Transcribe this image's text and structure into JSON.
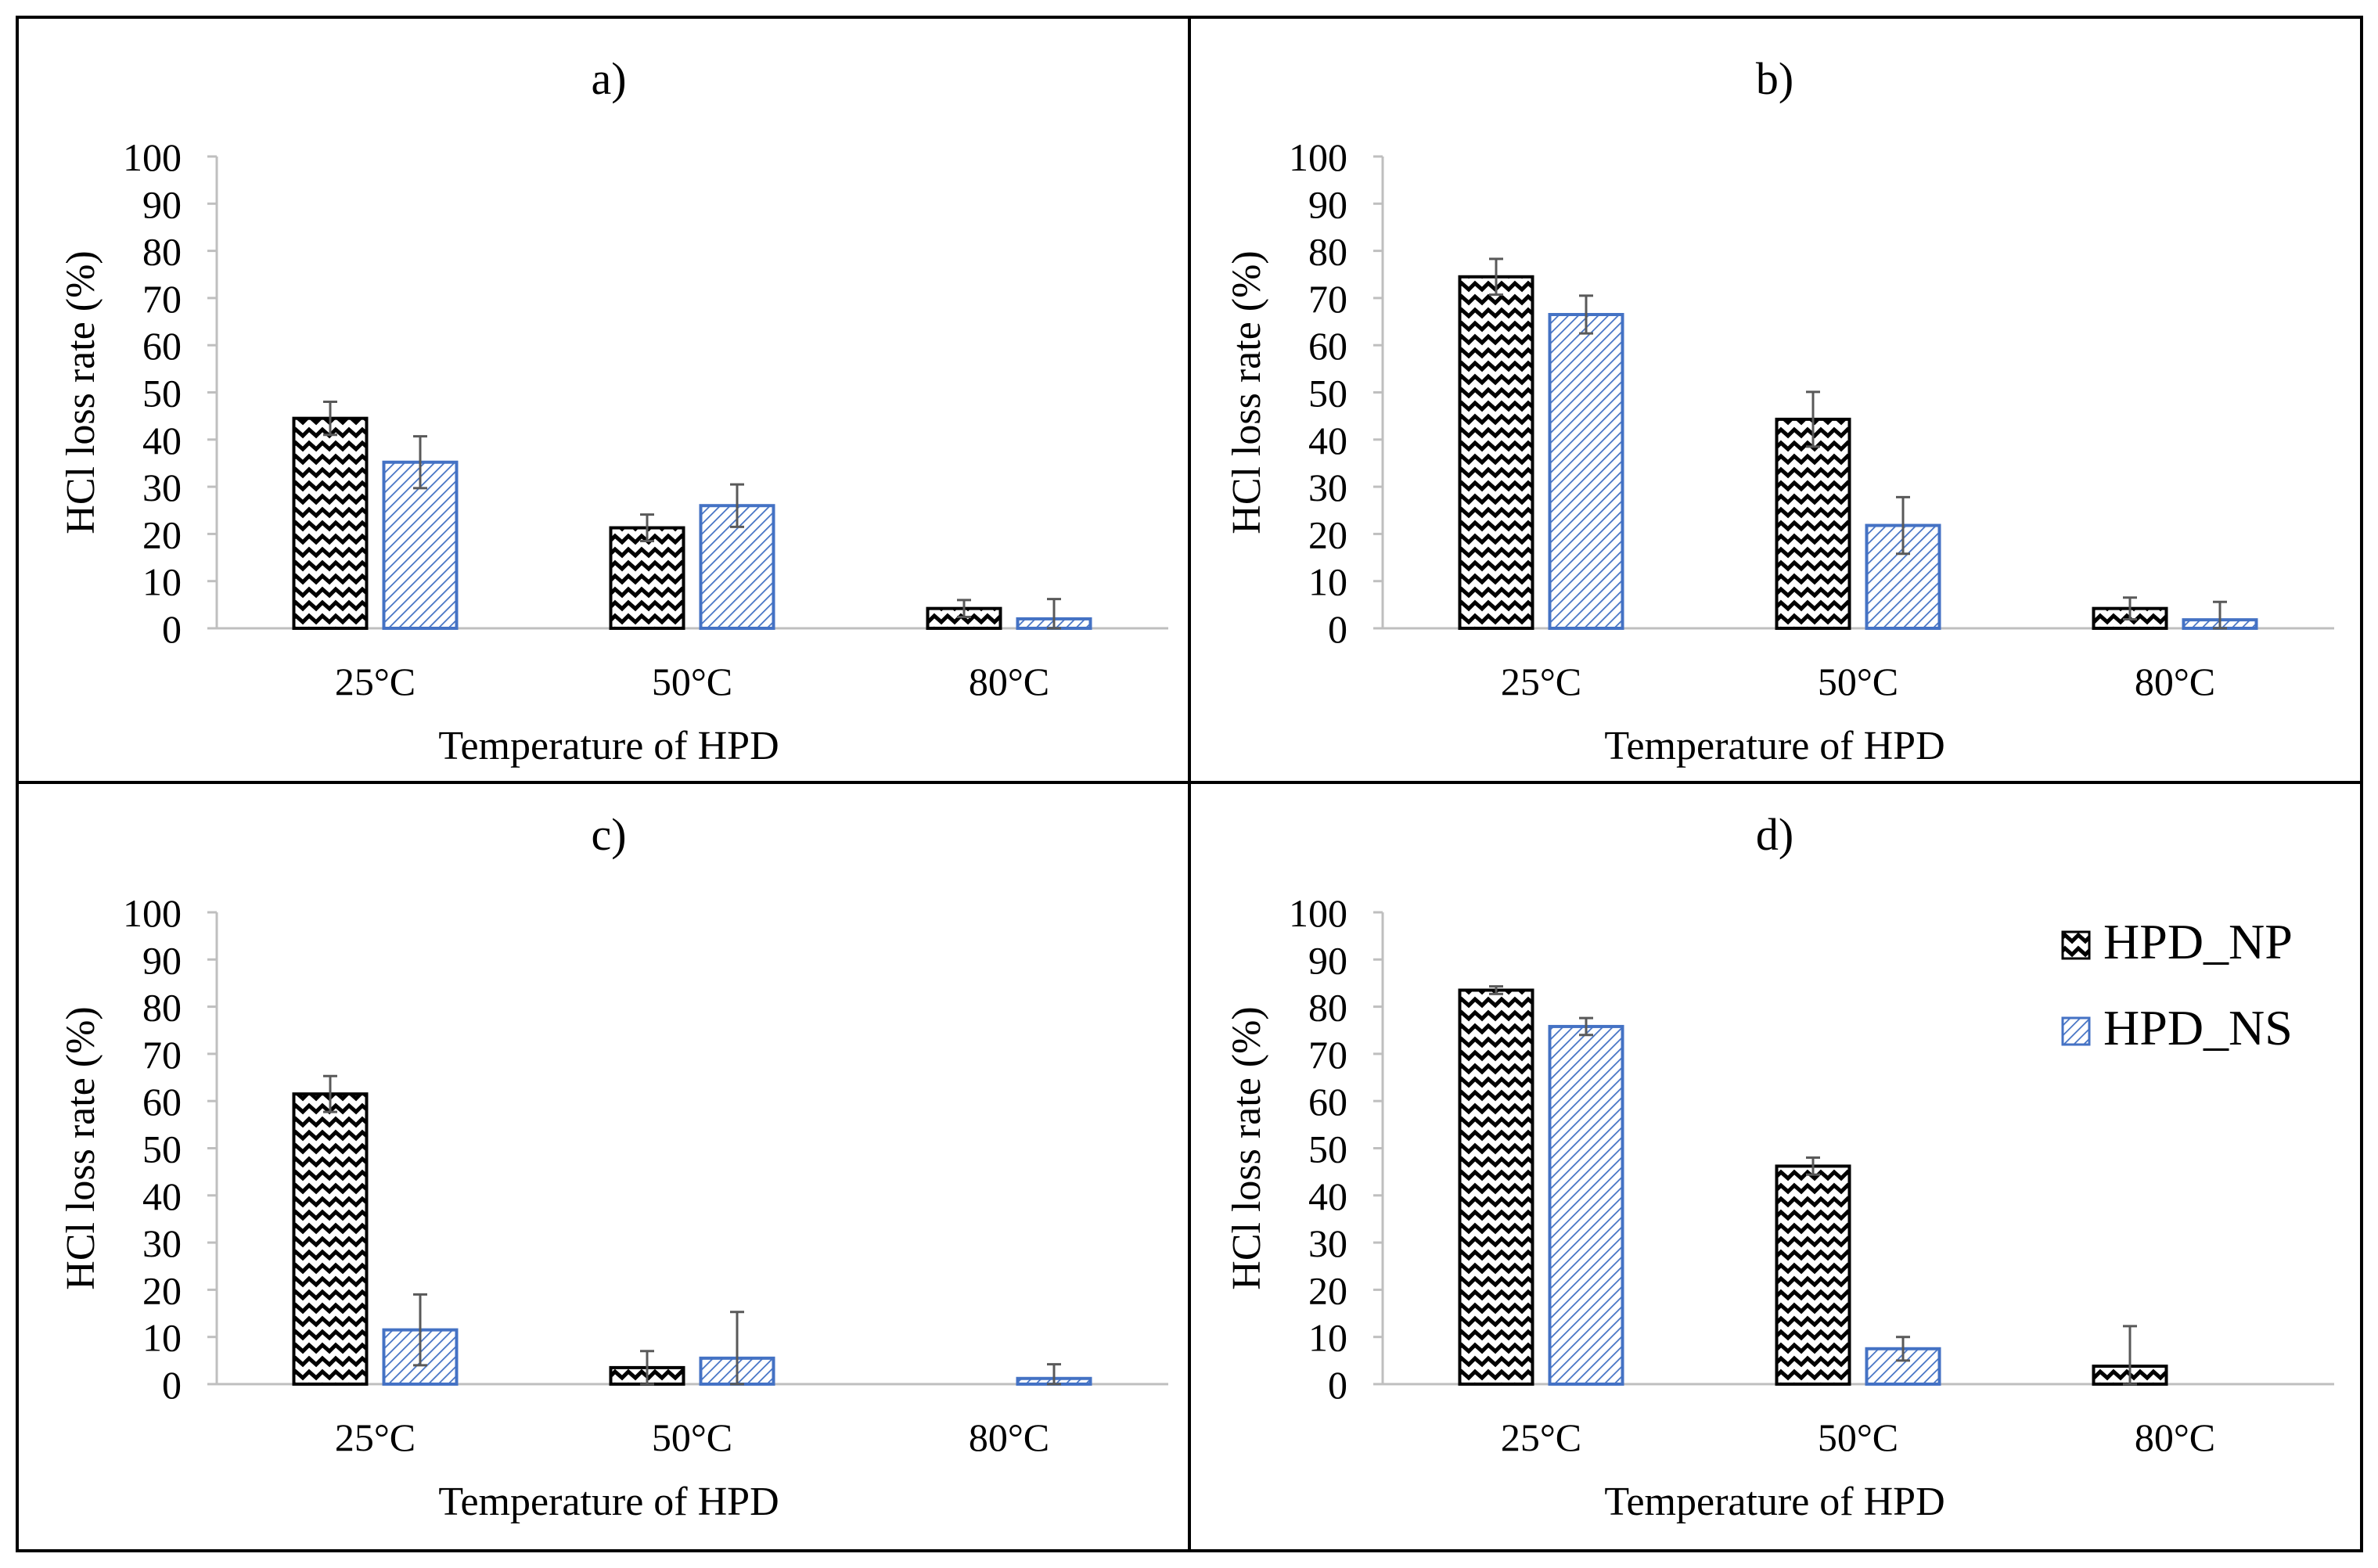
{
  "legend": {
    "np_label": "HPD_NP",
    "ns_label": "HPD_NS"
  },
  "colors": {
    "np_stroke": "#000000",
    "ns_stroke": "#4472C4",
    "axis": "#bfbfbf",
    "error_bar": "#595959",
    "frame": "#000000"
  },
  "chart_data": [
    {
      "type": "bar",
      "title": "a)",
      "xlabel": "Temperature of HPD",
      "ylabel": "HCl loss rate (%)",
      "ylim": [
        0,
        100
      ],
      "yticks": [
        "0",
        "10",
        "20",
        "30",
        "40",
        "50",
        "60",
        "70",
        "80",
        "90",
        "100"
      ],
      "categories": [
        "25°C",
        "50°C",
        "80°C"
      ],
      "series": [
        {
          "name": "HPD_NP",
          "values": [
            44.5,
            21.3,
            4.2
          ],
          "errors": [
            3.5,
            2.8,
            1.8
          ]
        },
        {
          "name": "HPD_NS",
          "values": [
            35.2,
            26.0,
            2.0
          ],
          "errors": [
            5.5,
            4.5,
            4.2
          ]
        }
      ]
    },
    {
      "type": "bar",
      "title": "b)",
      "xlabel": "Temperature of HPD",
      "ylabel": "HCl loss rate (%)",
      "ylim": [
        0,
        100
      ],
      "yticks": [
        "0",
        "10",
        "20",
        "30",
        "40",
        "50",
        "60",
        "70",
        "80",
        "90",
        "100"
      ],
      "categories": [
        "25°C",
        "50°C",
        "80°C"
      ],
      "series": [
        {
          "name": "HPD_NP",
          "values": [
            74.5,
            44.3,
            4.2
          ],
          "errors": [
            3.8,
            5.8,
            2.3
          ]
        },
        {
          "name": "HPD_NS",
          "values": [
            66.5,
            21.8,
            1.8
          ],
          "errors": [
            4.0,
            6.0,
            3.8
          ]
        }
      ]
    },
    {
      "type": "bar",
      "title": "c)",
      "xlabel": "Temperature of HPD",
      "ylabel": "HCl loss rate (%)",
      "ylim": [
        0,
        100
      ],
      "yticks": [
        "0",
        "10",
        "20",
        "30",
        "40",
        "50",
        "60",
        "70",
        "80",
        "90",
        "100"
      ],
      "categories": [
        "25°C",
        "50°C",
        "80°C"
      ],
      "series": [
        {
          "name": "HPD_NP",
          "values": [
            61.5,
            3.5,
            0
          ],
          "errors": [
            3.8,
            3.5,
            0
          ]
        },
        {
          "name": "HPD_NS",
          "values": [
            11.5,
            5.5,
            1.2
          ],
          "errors": [
            7.5,
            9.8,
            3.0
          ]
        }
      ]
    },
    {
      "type": "bar",
      "title": "d)",
      "xlabel": "Temperature of HPD",
      "ylabel": "HCl loss rate (%)",
      "ylim": [
        0,
        100
      ],
      "yticks": [
        "0",
        "10",
        "20",
        "30",
        "40",
        "50",
        "60",
        "70",
        "80",
        "90",
        "100"
      ],
      "categories": [
        "25°C",
        "50°C",
        "80°C"
      ],
      "series": [
        {
          "name": "HPD_NP",
          "values": [
            83.5,
            46.2,
            3.8
          ],
          "errors": [
            0.8,
            1.8,
            8.5
          ]
        },
        {
          "name": "HPD_NS",
          "values": [
            75.8,
            7.5,
            0
          ],
          "errors": [
            1.8,
            2.5,
            0
          ]
        }
      ]
    }
  ]
}
